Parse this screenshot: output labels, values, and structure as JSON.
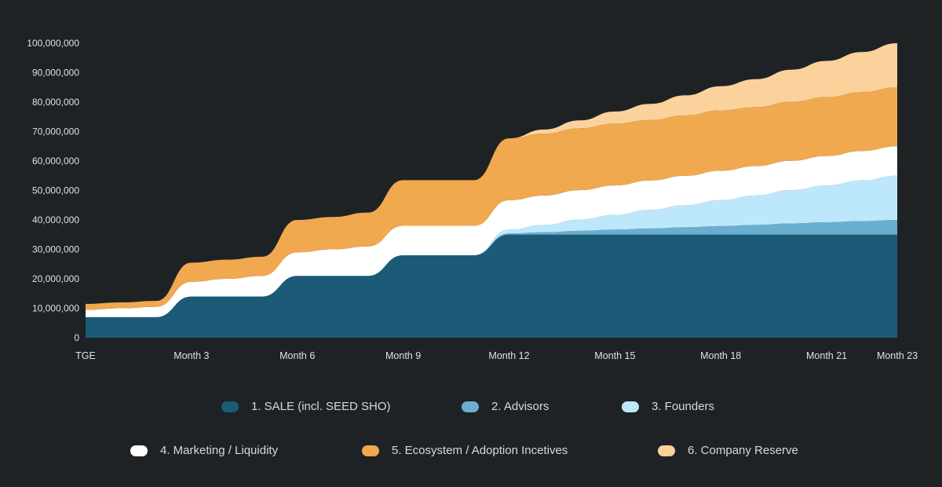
{
  "chart_data": {
    "type": "area",
    "stacked": true,
    "title": "",
    "xlabel": "",
    "ylabel": "",
    "x": [
      0,
      1,
      2,
      3,
      4,
      5,
      6,
      7,
      8,
      9,
      10,
      11,
      12,
      13,
      14,
      15,
      16,
      17,
      18,
      19,
      20,
      21,
      22,
      23
    ],
    "x_ticks": [
      {
        "x": 0,
        "label": "TGE"
      },
      {
        "x": 3,
        "label": "Month 3"
      },
      {
        "x": 6,
        "label": "Month 6"
      },
      {
        "x": 9,
        "label": "Month 9"
      },
      {
        "x": 12,
        "label": "Month 12"
      },
      {
        "x": 15,
        "label": "Month 15"
      },
      {
        "x": 18,
        "label": "Month 18"
      },
      {
        "x": 21,
        "label": "Month 21"
      },
      {
        "x": 23,
        "label": "Month 23"
      }
    ],
    "y_ticks": [
      {
        "y": 0,
        "label": "0"
      },
      {
        "y": 10,
        "label": "10,000,000"
      },
      {
        "y": 20,
        "label": "20,000,000"
      },
      {
        "y": 30,
        "label": "30,000,000"
      },
      {
        "y": 40,
        "label": "40,000,000"
      },
      {
        "y": 50,
        "label": "50,000,000"
      },
      {
        "y": 60,
        "label": "60,000,000"
      },
      {
        "y": 70,
        "label": "70,000,000"
      },
      {
        "y": 80,
        "label": "80,000,000"
      },
      {
        "y": 90,
        "label": "90,000,000"
      },
      {
        "y": 100,
        "label": "100,000,000"
      }
    ],
    "y_unit_multiplier": 1000000,
    "ylim": [
      0,
      100
    ],
    "xlim": [
      0,
      23
    ],
    "grid": false,
    "legend_placement": "bottom",
    "series": [
      {
        "name": "1. SALE (incl. SEED SHO)",
        "color": "#1b5b78",
        "values": [
          7,
          7,
          7,
          14,
          14,
          14,
          21,
          21,
          21,
          28,
          28,
          28,
          35,
          35,
          35,
          35,
          35,
          35,
          35,
          35,
          35,
          35,
          35,
          35
        ]
      },
      {
        "name": "2. Advisors",
        "color": "#6aafd0",
        "values": [
          0,
          0,
          0,
          0,
          0,
          0,
          0,
          0,
          0,
          0,
          0,
          0,
          0.4,
          0.8,
          1.3,
          1.7,
          2.1,
          2.5,
          2.9,
          3.3,
          3.8,
          4.2,
          4.6,
          5.0
        ]
      },
      {
        "name": "3. Founders",
        "color": "#bde8fb",
        "values": [
          0,
          0,
          0,
          0,
          0,
          0,
          0,
          0,
          0,
          0,
          0,
          0,
          1.3,
          2.5,
          3.8,
          5.0,
          6.3,
          7.5,
          8.8,
          10.0,
          11.3,
          12.5,
          13.8,
          15.0
        ]
      },
      {
        "name": "4. Marketing / Liquidity",
        "color": "#ffffff",
        "values": [
          2.5,
          3,
          3.5,
          5,
          6,
          7,
          8,
          9,
          10,
          10,
          10,
          10,
          10,
          10,
          10,
          10,
          10,
          10,
          10,
          10,
          10,
          10,
          10,
          10
        ]
      },
      {
        "name": "5. Ecosystem / Adoption Incetives",
        "color": "#f0a94e",
        "values": [
          2,
          2,
          2,
          6.5,
          6.5,
          6.5,
          11,
          11,
          11.5,
          15.5,
          15.5,
          15.5,
          21,
          21,
          21,
          21,
          20.5,
          20.5,
          20.5,
          20,
          20,
          20,
          20,
          20
        ]
      },
      {
        "name": "6. Company Reserve",
        "color": "#fbd29c",
        "values": [
          0,
          0,
          0,
          0,
          0,
          0,
          0,
          0,
          0,
          0,
          0,
          0,
          0,
          1.4,
          2.7,
          4.1,
          5.5,
          6.8,
          8.2,
          9.5,
          10.9,
          12.3,
          13.6,
          15.0
        ]
      }
    ]
  }
}
